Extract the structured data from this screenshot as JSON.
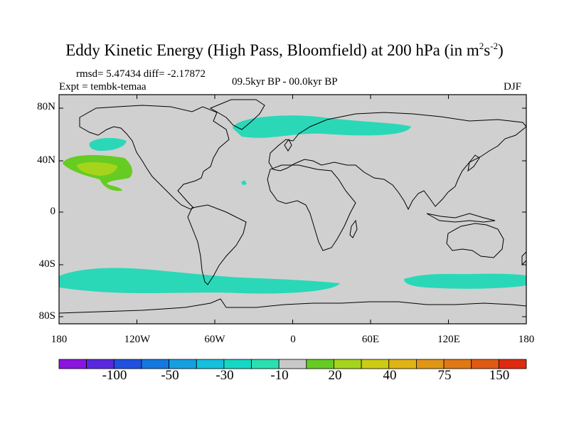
{
  "title": {
    "text": "Eddy Kinetic Energy (High Pass, Bloomfield) at 200 hPa (in m",
    "sup1": "2",
    "mid": "s",
    "sup2": "-2",
    "close": ")"
  },
  "stats": {
    "rmsd_diff": "rmsd= 5.47434 diff= -2.17872",
    "experiment": "Expt = tembk-temaa",
    "period": "09.5kyr BP - 00.0kyr BP",
    "season": "DJF"
  },
  "map": {
    "lat_labels": [
      "80N",
      "40N",
      "0",
      "40S",
      "80S"
    ],
    "lon_labels": [
      "180",
      "120W",
      "60W",
      "0",
      "60E",
      "120E",
      "180"
    ],
    "colors": {
      "ocean_land_fill": "#d0d0d0",
      "coast": "#000000",
      "anomaly_minus10": "#2ad8b8",
      "anomaly_plus20": "#66cc22",
      "anomaly_plus30": "#a6d41c"
    }
  },
  "colorbar": {
    "labels": [
      "-100",
      "-50",
      "-30",
      "-10",
      "20",
      "40",
      "75",
      "150"
    ],
    "colors": [
      "#8a14e0",
      "#5a28e0",
      "#2250e0",
      "#1478e0",
      "#14a0e0",
      "#14c0dc",
      "#14d8c4",
      "#2ae0b0",
      "#c8c8c8",
      "#66cc22",
      "#a6d41c",
      "#cccc14",
      "#e0b414",
      "#e09614",
      "#e07814",
      "#e05a14",
      "#e02a10"
    ]
  }
}
